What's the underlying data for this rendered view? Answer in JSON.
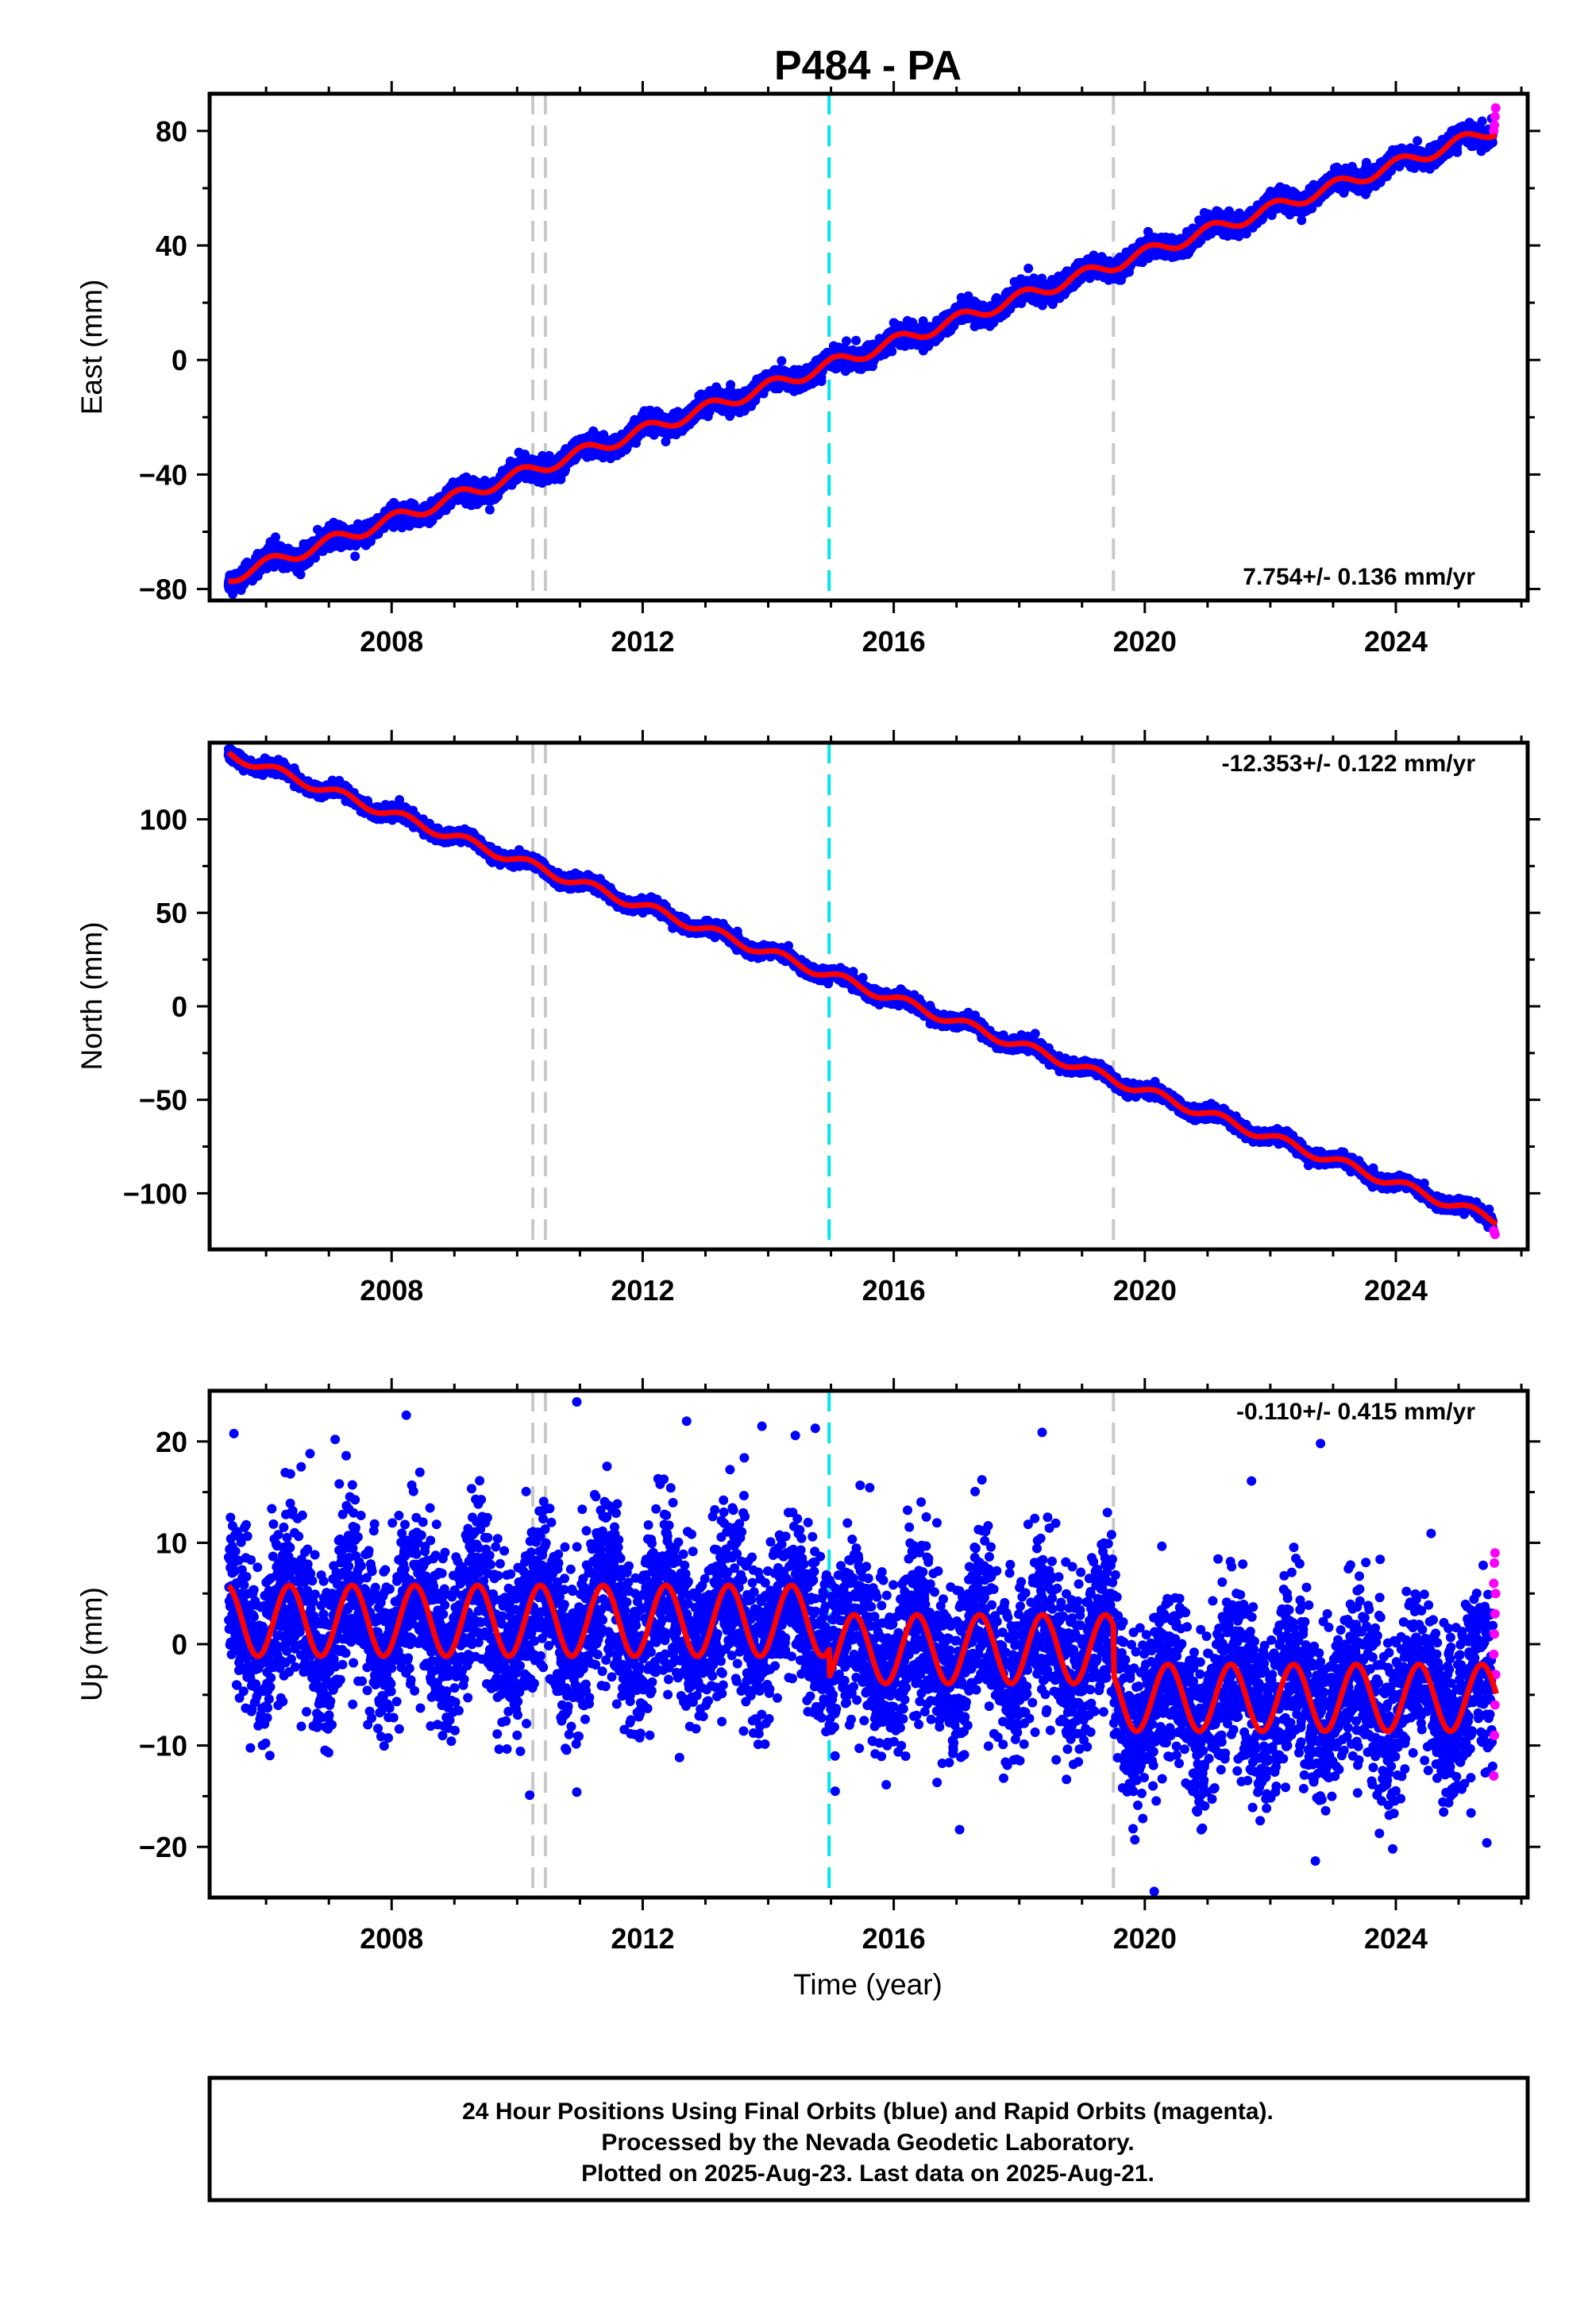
{
  "page": {
    "title": "P484 - PA"
  },
  "colors": {
    "final_orbits": "#0000ff",
    "rapid_orbits": "#ff00ff",
    "model_fit": "#ff0000",
    "event_gray": "#c8c8c8",
    "event_cyan": "#00e5ee"
  },
  "chart_data": [
    {
      "type": "scatter",
      "panel": "east",
      "ylabel": "East (mm)",
      "xlabel": "",
      "xlim": [
        2005.1,
        2026.1
      ],
      "ylim": [
        -84,
        93
      ],
      "xticks": [
        2008,
        2012,
        2016,
        2020,
        2024
      ],
      "yticks": [
        -80,
        -40,
        0,
        40,
        80
      ],
      "ytick_labels": [
        "−80",
        "−40",
        "0",
        "40",
        "80"
      ],
      "rate_label": "7.754+/- 0.136 mm/yr",
      "trend": {
        "t0": 2005.4,
        "y0": -76,
        "velocity_mm_per_yr": 7.754,
        "annual_amplitude": 2.2,
        "phase": 1.2
      },
      "scatter_sd": 1.7,
      "rapid_end_values": [
        80,
        82,
        85,
        88
      ],
      "event_lines": [
        {
          "year": 2010.25,
          "color": "gray"
        },
        {
          "year": 2010.45,
          "color": "gray"
        },
        {
          "year": 2014.97,
          "color": "cyan"
        },
        {
          "year": 2019.5,
          "color": "gray"
        }
      ]
    },
    {
      "type": "scatter",
      "panel": "north",
      "ylabel": "North (mm)",
      "xlabel": "",
      "xlim": [
        2005.1,
        2026.1
      ],
      "ylim": [
        -130,
        141
      ],
      "xticks": [
        2008,
        2012,
        2016,
        2020,
        2024
      ],
      "yticks": [
        -100,
        -50,
        0,
        50,
        100
      ],
      "ytick_labels": [
        "−100",
        "−50",
        "0",
        "50",
        "100"
      ],
      "rate_label": "-12.353+/- 0.122 mm/yr",
      "trend": {
        "t0": 2005.4,
        "y0": 135,
        "velocity_mm_per_yr": -12.353,
        "annual_amplitude": 2.5,
        "phase": 0.3
      },
      "scatter_sd": 1.6,
      "rapid_end_values": [
        -120,
        -121,
        -122
      ],
      "event_lines": [
        {
          "year": 2010.25,
          "color": "gray"
        },
        {
          "year": 2010.45,
          "color": "gray"
        },
        {
          "year": 2014.97,
          "color": "cyan"
        },
        {
          "year": 2019.5,
          "color": "gray"
        }
      ]
    },
    {
      "type": "scatter",
      "panel": "up",
      "ylabel": "Up (mm)",
      "xlabel": "Time (year)",
      "xlim": [
        2005.1,
        2026.1
      ],
      "ylim": [
        -25,
        25
      ],
      "xticks": [
        2008,
        2012,
        2016,
        2020,
        2024
      ],
      "yticks": [
        -20,
        -10,
        0,
        10,
        20
      ],
      "ytick_labels": [
        "−20",
        "−10",
        "0",
        "10",
        "20"
      ],
      "rate_label": "-0.110+/- 0.415 mm/yr",
      "model_segments": [
        {
          "start": 2005.4,
          "end": 2014.97,
          "offset": 2.3,
          "amplitude": 3.5
        },
        {
          "start": 2014.97,
          "end": 2019.5,
          "offset": -0.5,
          "amplitude": 3.4
        },
        {
          "start": 2019.5,
          "end": 2025.6,
          "offset": -5.3,
          "amplitude": 3.3
        }
      ],
      "scatter_sd": 4.2,
      "rapid_end_values": [
        -13,
        -9,
        -6,
        -3,
        -1,
        1,
        3,
        5,
        6,
        8,
        9
      ],
      "outliers": [
        {
          "x": 2007.1,
          "y": 20.2
        },
        {
          "x": 2006.7,
          "y": 18.8
        },
        {
          "x": 2010.95,
          "y": 23.9
        },
        {
          "x": 2012.7,
          "y": 22.0
        },
        {
          "x": 2013.9,
          "y": 21.5
        },
        {
          "x": 2014.75,
          "y": 21.3
        },
        {
          "x": 2022.8,
          "y": 19.8
        },
        {
          "x": 2020.15,
          "y": -24.4
        },
        {
          "x": 2010.2,
          "y": -14.9
        },
        {
          "x": 2010.95,
          "y": -14.6
        },
        {
          "x": 2017.05,
          "y": -18.3
        },
        {
          "x": 2023.95,
          "y": -20.2
        },
        {
          "x": 2025.45,
          "y": -19.6
        },
        {
          "x": 2021.7,
          "y": 16.1
        }
      ],
      "event_lines": [
        {
          "year": 2010.25,
          "color": "gray"
        },
        {
          "year": 2010.45,
          "color": "gray"
        },
        {
          "year": 2014.97,
          "color": "cyan"
        },
        {
          "year": 2019.5,
          "color": "gray"
        }
      ]
    }
  ],
  "footer": {
    "line1": "24 Hour Positions Using Final Orbits (blue) and Rapid Orbits (magenta).",
    "line2": "Processed by the Nevada Geodetic Laboratory.",
    "line3": "Plotted on 2025-Aug-23. Last data on 2025-Aug-21."
  }
}
